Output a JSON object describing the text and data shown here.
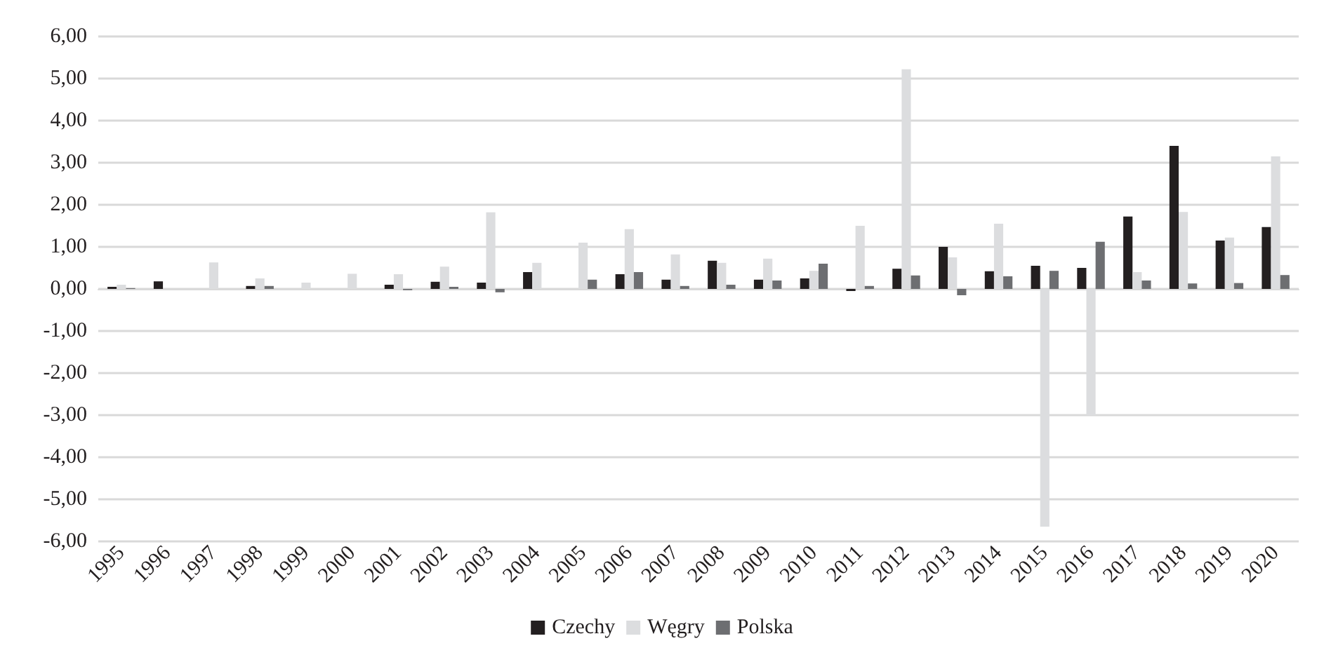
{
  "chart_data": {
    "type": "bar",
    "categories": [
      "1995",
      "1996",
      "1997",
      "1998",
      "1999",
      "2000",
      "2001",
      "2002",
      "2003",
      "2004",
      "2005",
      "2006",
      "2007",
      "2008",
      "2009",
      "2010",
      "2011",
      "2012",
      "2013",
      "2014",
      "2015",
      "2016",
      "2017",
      "2018",
      "2019",
      "2020"
    ],
    "series": [
      {
        "name": "Czechy",
        "color": "#231f20",
        "values": [
          0.05,
          0.18,
          0,
          0.07,
          0,
          0,
          0.1,
          0.17,
          0.15,
          0.4,
          0,
          0.35,
          0.22,
          0.67,
          0.22,
          0.25,
          -0.05,
          0.48,
          1.0,
          0.42,
          0.55,
          0.5,
          1.72,
          3.4,
          1.15,
          1.47
        ]
      },
      {
        "name": "Węgry",
        "color": "#dcdddf",
        "values": [
          0.1,
          0,
          0.63,
          0.25,
          0.15,
          0.36,
          0.35,
          0.53,
          1.82,
          0.62,
          1.1,
          1.42,
          0.82,
          0.62,
          0.72,
          0.43,
          1.5,
          5.22,
          0.75,
          1.55,
          -5.65,
          -3.0,
          0.4,
          1.83,
          1.22,
          3.15
        ]
      },
      {
        "name": "Polska",
        "color": "#6d6e71",
        "values": [
          0.02,
          0,
          0,
          0.07,
          0,
          0,
          -0.03,
          0.05,
          -0.08,
          0,
          0.22,
          0.4,
          0.07,
          0.1,
          0.2,
          0.6,
          0.07,
          0.32,
          -0.15,
          0.3,
          0.43,
          1.12,
          0.2,
          0.13,
          0.14,
          0.33
        ]
      }
    ],
    "ylim": [
      -6,
      6
    ],
    "yticks": [
      {
        "value": -6,
        "label": "-6,00"
      },
      {
        "value": -5,
        "label": "-5,00"
      },
      {
        "value": -4,
        "label": "-4,00"
      },
      {
        "value": -3,
        "label": "-3,00"
      },
      {
        "value": -2,
        "label": "-2,00"
      },
      {
        "value": -1,
        "label": "-1,00"
      },
      {
        "value": 0,
        "label": "0,00"
      },
      {
        "value": 1,
        "label": "1,00"
      },
      {
        "value": 2,
        "label": "2,00"
      },
      {
        "value": 3,
        "label": "3,00"
      },
      {
        "value": 4,
        "label": "4,00"
      },
      {
        "value": 5,
        "label": "5,00"
      },
      {
        "value": 6,
        "label": "6,00"
      }
    ],
    "grid": "y",
    "legend": "bottom"
  }
}
